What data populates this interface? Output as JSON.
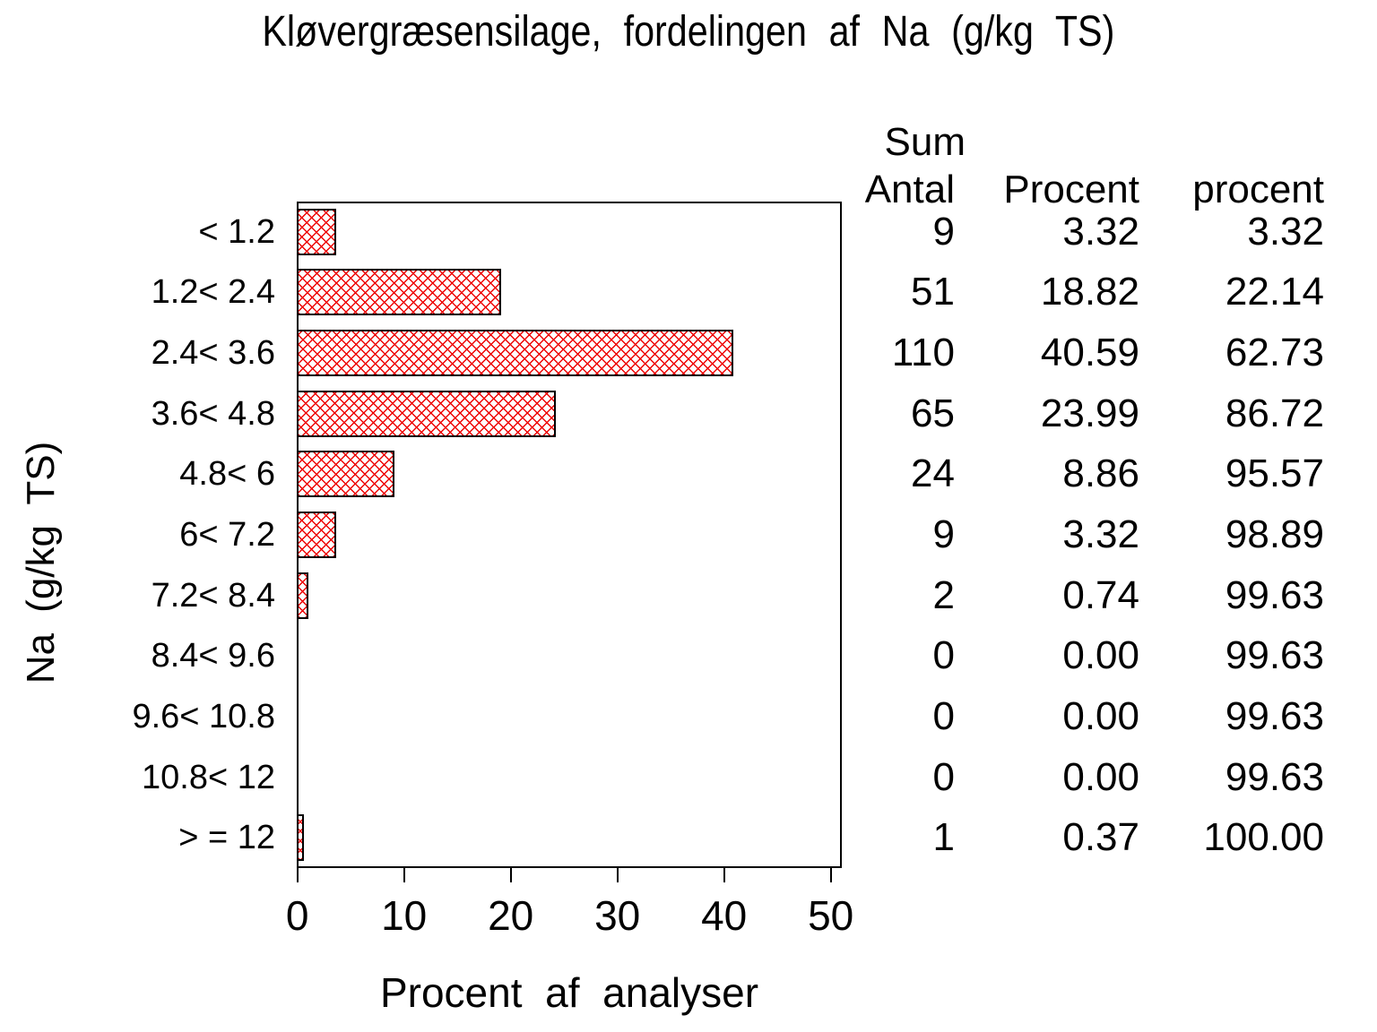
{
  "title": "Kløvergræsensilage, fordelingen af Na (g/kg TS)",
  "colors": {
    "background": "#ffffff",
    "text": "#000000",
    "axis": "#000000",
    "bar_border": "#000000",
    "bar_hatch": "#ee0000"
  },
  "chart_data": {
    "type": "bar",
    "orientation": "horizontal",
    "title": "Kløvergræsensilage, fordelingen af Na (g/kg TS)",
    "xlabel": "Procent af analyser",
    "ylabel": "Na (g/kg TS)",
    "xlim": [
      0,
      50
    ],
    "x_ticks": [
      0,
      10,
      20,
      30,
      40,
      50
    ],
    "grid": false,
    "bar_style": "white fill with red diagonal crosshatch, black outline",
    "categories": [
      "< 1.2",
      "1.2< 2.4",
      "2.4< 3.6",
      "3.6< 4.8",
      "4.8< 6",
      "6< 7.2",
      "7.2< 8.4",
      "8.4< 9.6",
      "9.6< 10.8",
      "10.8< 12",
      "> = 12"
    ],
    "values": [
      3.32,
      18.82,
      40.59,
      23.99,
      8.86,
      3.32,
      0.74,
      0.0,
      0.0,
      0.0,
      0.37
    ]
  },
  "table": {
    "header": {
      "antal": "Antal",
      "procent": "Procent",
      "sum_line1": "Sum",
      "sum_line2": "procent"
    },
    "rows": [
      {
        "antal": "9",
        "procent": "3.32",
        "sum": "3.32"
      },
      {
        "antal": "51",
        "procent": "18.82",
        "sum": "22.14"
      },
      {
        "antal": "110",
        "procent": "40.59",
        "sum": "62.73"
      },
      {
        "antal": "65",
        "procent": "23.99",
        "sum": "86.72"
      },
      {
        "antal": "24",
        "procent": "8.86",
        "sum": "95.57"
      },
      {
        "antal": "9",
        "procent": "3.32",
        "sum": "98.89"
      },
      {
        "antal": "2",
        "procent": "0.74",
        "sum": "99.63"
      },
      {
        "antal": "0",
        "procent": "0.00",
        "sum": "99.63"
      },
      {
        "antal": "0",
        "procent": "0.00",
        "sum": "99.63"
      },
      {
        "antal": "0",
        "procent": "0.00",
        "sum": "99.63"
      },
      {
        "antal": "1",
        "procent": "0.37",
        "sum": "100.00"
      }
    ]
  }
}
